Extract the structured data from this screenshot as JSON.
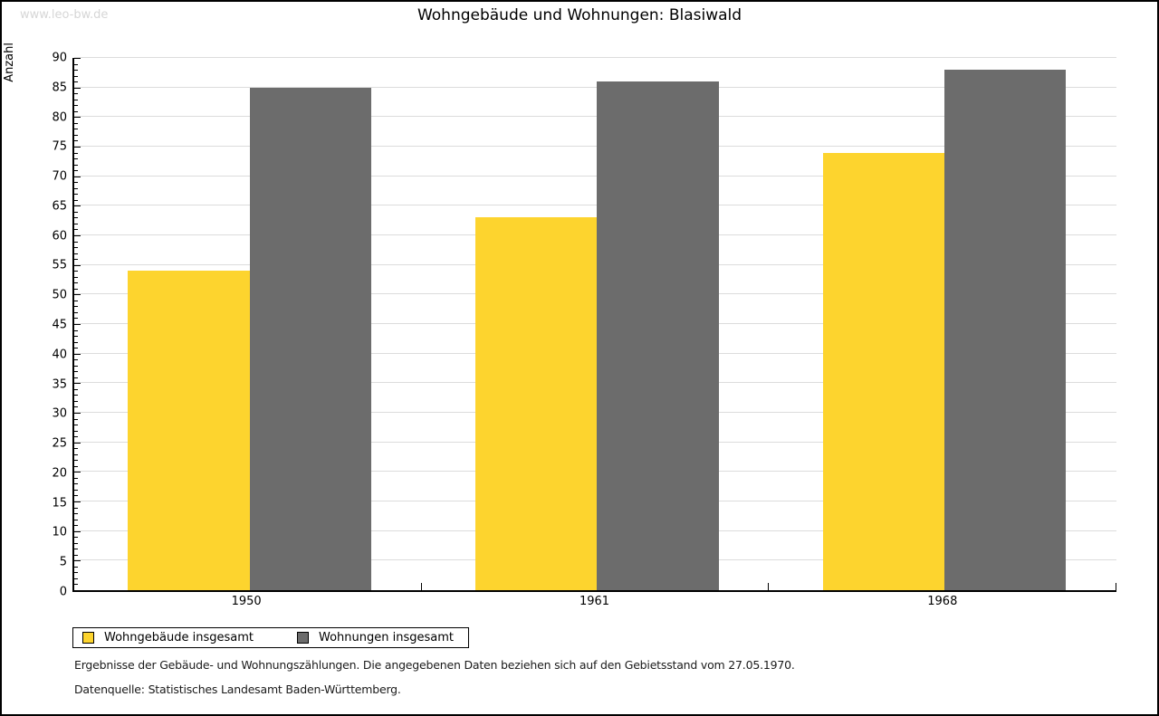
{
  "watermark": "www.leo-bw.de",
  "chart_data": {
    "type": "bar",
    "title": "Wohngebäude und Wohnungen: Blasiwald",
    "ylabel": "Anzahl",
    "xlabel": "",
    "categories": [
      "1950",
      "1961",
      "1968"
    ],
    "series": [
      {
        "name": "Wohngebäude insgesamt",
        "color": "#FDD42E",
        "values": [
          54,
          63,
          74
        ]
      },
      {
        "name": "Wohnungen insgesamt",
        "color": "#6C6C6C",
        "values": [
          85,
          86,
          88
        ]
      }
    ],
    "ylim": [
      0,
      90
    ],
    "ytick_step": 5,
    "minor_tick_step": 1,
    "grid": true,
    "gridline_color": "#dcdcdc",
    "legend_position": "bottom-left"
  },
  "footnotes": {
    "line1": "Ergebnisse der Gebäude- und Wohnungszählungen. Die angegebenen Daten beziehen sich auf den Gebietsstand vom 27.05.1970.",
    "line2": "Datenquelle: Statistisches Landesamt Baden-Württemberg."
  }
}
